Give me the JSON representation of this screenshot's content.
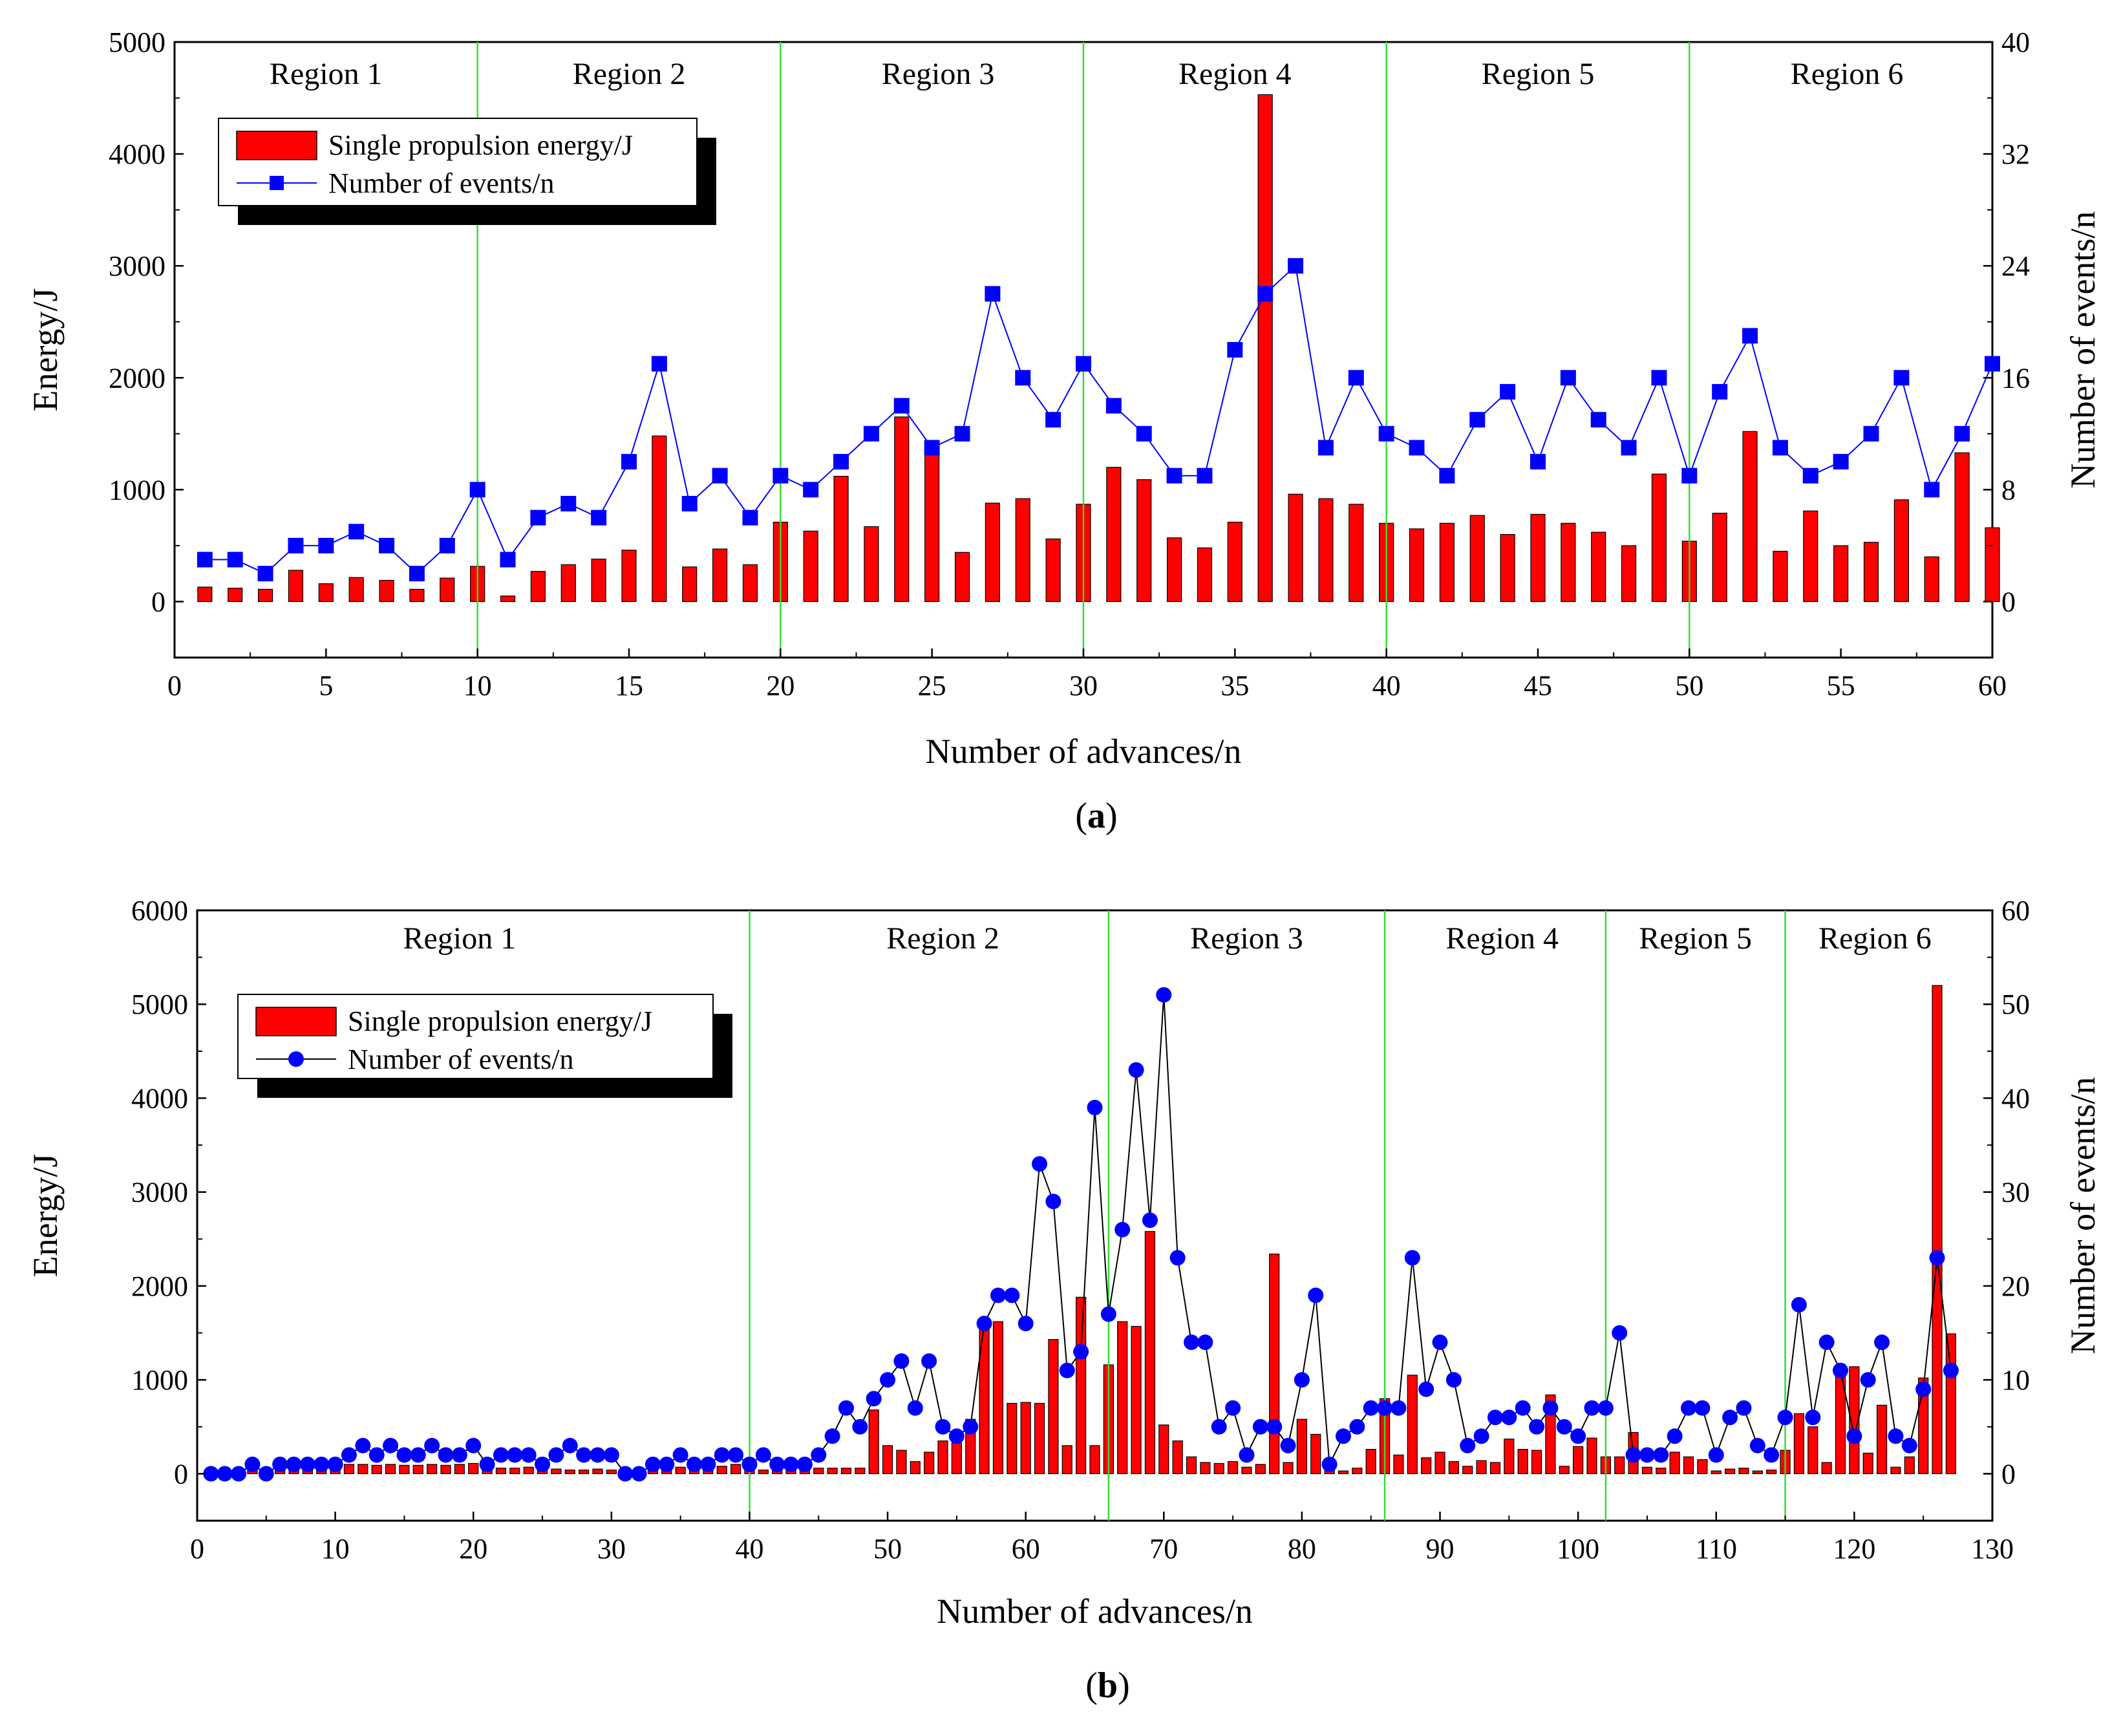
{
  "chart_data": [
    {
      "type": "bar+line",
      "panel_label": "a",
      "xlabel": "Number of advances/n",
      "ylabel_left": "Energy/J",
      "ylabel_right": "Number of events/n",
      "xlim": [
        0,
        60
      ],
      "ylim_left": [
        -500,
        5000
      ],
      "ylim_right": [
        -4,
        40
      ],
      "x_ticks": [
        0,
        5,
        10,
        15,
        20,
        25,
        30,
        35,
        40,
        45,
        50,
        55,
        60
      ],
      "y_left_ticks": [
        0,
        1000,
        2000,
        3000,
        4000,
        5000
      ],
      "y_right_ticks": [
        0,
        8,
        16,
        24,
        32,
        40
      ],
      "region_boundaries": [
        10,
        20,
        30,
        40,
        50
      ],
      "regions": [
        {
          "label": "Region 1",
          "x": 5
        },
        {
          "label": "Region 2",
          "x": 15
        },
        {
          "label": "Region 3",
          "x": 25.2
        },
        {
          "label": "Region 4",
          "x": 35
        },
        {
          "label": "Region 5",
          "x": 45
        },
        {
          "label": "Region 6",
          "x": 55.2
        }
      ],
      "legend": {
        "bar": "Single propulsion energy/J",
        "line": "Number of events/n",
        "placement": "top-left"
      },
      "line_marker": "square",
      "line_color": "#0000ff",
      "bar_color": "#ff0000",
      "x": [
        1,
        2,
        3,
        4,
        5,
        6,
        7,
        8,
        9,
        10,
        11,
        12,
        13,
        14,
        15,
        16,
        17,
        18,
        19,
        20,
        21,
        22,
        23,
        24,
        25,
        26,
        27,
        28,
        29,
        30,
        31,
        32,
        33,
        34,
        35,
        36,
        37,
        38,
        39,
        40,
        41,
        42,
        43,
        44,
        45,
        46,
        47,
        48,
        49,
        50,
        51,
        52,
        53,
        54,
        55,
        56,
        57,
        58,
        59,
        60
      ],
      "series": [
        {
          "name": "Single propulsion energy/J",
          "axis": "left",
          "values": [
            130,
            120,
            110,
            280,
            160,
            215,
            190,
            110,
            210,
            315,
            50,
            270,
            330,
            380,
            460,
            1480,
            310,
            470,
            330,
            710,
            630,
            1120,
            670,
            1650,
            1370,
            440,
            880,
            920,
            560,
            870,
            1200,
            1090,
            570,
            480,
            710,
            4530,
            960,
            920,
            870,
            700,
            650,
            700,
            770,
            600,
            780,
            700,
            620,
            500,
            1140,
            540,
            790,
            1520,
            450,
            810,
            500,
            530,
            910,
            400,
            1330,
            660
          ]
        },
        {
          "name": "Number of events/n",
          "axis": "right",
          "values": [
            3,
            3,
            2,
            4,
            4,
            5,
            4,
            2,
            4,
            8,
            3,
            6,
            7,
            6,
            10,
            17,
            7,
            9,
            6,
            9,
            8,
            10,
            12,
            14,
            11,
            12,
            22,
            16,
            13,
            17,
            14,
            12,
            9,
            9,
            18,
            22,
            24,
            11,
            16,
            12,
            11,
            9,
            13,
            15,
            10,
            16,
            13,
            11,
            16,
            9,
            15,
            19,
            11,
            9,
            10,
            12,
            16,
            8,
            12,
            17
          ]
        }
      ]
    },
    {
      "type": "bar+line",
      "panel_label": "b",
      "xlabel": "Number of advances/n",
      "ylabel_left": "Energy/J",
      "ylabel_right": "Number of events/n",
      "xlim": [
        0,
        130
      ],
      "ylim_left": [
        -500,
        6000
      ],
      "ylim_right": [
        -5,
        60
      ],
      "x_ticks": [
        0,
        10,
        20,
        30,
        40,
        50,
        60,
        70,
        80,
        90,
        100,
        110,
        120,
        130
      ],
      "y_left_ticks": [
        0,
        1000,
        2000,
        3000,
        4000,
        5000,
        6000
      ],
      "y_right_ticks": [
        0,
        10,
        20,
        30,
        40,
        50,
        60
      ],
      "region_boundaries": [
        40,
        66,
        86,
        102,
        115
      ],
      "regions": [
        {
          "label": "Region 1",
          "x": 19
        },
        {
          "label": "Region 2",
          "x": 54
        },
        {
          "label": "Region 3",
          "x": 76
        },
        {
          "label": "Region 4",
          "x": 94.5
        },
        {
          "label": "Region 5",
          "x": 108.5
        },
        {
          "label": "Region 6",
          "x": 121.5
        }
      ],
      "legend": {
        "bar": "Single propulsion energy/J",
        "line": "Number of events/n",
        "placement": "top-left"
      },
      "line_marker": "circle",
      "line_color": "#000000",
      "marker_color": "#0000ff",
      "bar_color": "#ff0000",
      "x": [
        1,
        2,
        3,
        4,
        5,
        6,
        7,
        8,
        9,
        10,
        11,
        12,
        13,
        14,
        15,
        16,
        17,
        18,
        19,
        20,
        21,
        22,
        23,
        24,
        25,
        26,
        27,
        28,
        29,
        30,
        31,
        32,
        33,
        34,
        35,
        36,
        37,
        38,
        39,
        40,
        41,
        42,
        43,
        44,
        45,
        46,
        47,
        48,
        49,
        50,
        51,
        52,
        53,
        54,
        55,
        56,
        57,
        58,
        59,
        60,
        61,
        62,
        63,
        64,
        65,
        66,
        67,
        68,
        69,
        70,
        71,
        72,
        73,
        74,
        75,
        76,
        77,
        78,
        79,
        80,
        81,
        82,
        83,
        84,
        85,
        86,
        87,
        88,
        89,
        90,
        91,
        92,
        93,
        94,
        95,
        96,
        97,
        98,
        99,
        100,
        101,
        102,
        103,
        104,
        105,
        106,
        107,
        108,
        109,
        110,
        111,
        112,
        113,
        114,
        115,
        116,
        117,
        118,
        119,
        120,
        121,
        122,
        123,
        124,
        125,
        126,
        127
      ],
      "series": [
        {
          "name": "Single propulsion energy/J",
          "axis": "left",
          "values": [
            30,
            40,
            50,
            60,
            50,
            60,
            70,
            80,
            80,
            90,
            100,
            100,
            90,
            100,
            90,
            90,
            100,
            90,
            100,
            110,
            60,
            60,
            60,
            70,
            70,
            50,
            40,
            40,
            50,
            40,
            50,
            60,
            70,
            60,
            70,
            80,
            70,
            80,
            100,
            120,
            40,
            40,
            50,
            60,
            60,
            60,
            60,
            60,
            680,
            300,
            250,
            130,
            230,
            350,
            330,
            580,
            1650,
            1620,
            750,
            760,
            750,
            1430,
            300,
            1880,
            300,
            1160,
            1620,
            1570,
            2580,
            520,
            350,
            180,
            120,
            110,
            130,
            70,
            100,
            2340,
            120,
            580,
            420,
            60,
            30,
            60,
            260,
            800,
            200,
            1050,
            170,
            230,
            130,
            80,
            140,
            120,
            370,
            260,
            250,
            840,
            80,
            290,
            380,
            180,
            180,
            440,
            70,
            60,
            230,
            180,
            150,
            30,
            50,
            60,
            30,
            40,
            250,
            640,
            500,
            120,
            1050,
            1140,
            220,
            730,
            70,
            180,
            1020,
            5200,
            1490
          ]
        },
        {
          "name": "Number of events/n",
          "axis": "right",
          "values": [
            0,
            0,
            0,
            1,
            0,
            1,
            1,
            1,
            1,
            1,
            2,
            3,
            2,
            3,
            2,
            2,
            3,
            2,
            2,
            3,
            1,
            2,
            2,
            2,
            1,
            2,
            3,
            2,
            2,
            2,
            0,
            0,
            1,
            1,
            2,
            1,
            1,
            2,
            2,
            1,
            2,
            1,
            1,
            1,
            2,
            4,
            7,
            5,
            8,
            10,
            12,
            7,
            12,
            5,
            4,
            5,
            16,
            19,
            19,
            16,
            33,
            29,
            11,
            13,
            39,
            17,
            26,
            43,
            27,
            51,
            23,
            14,
            14,
            5,
            7,
            2,
            5,
            5,
            3,
            10,
            19,
            1,
            4,
            5,
            7,
            7,
            7,
            23,
            9,
            14,
            10,
            3,
            4,
            6,
            6,
            7,
            5,
            7,
            5,
            4,
            7,
            7,
            15,
            2,
            2,
            2,
            4,
            7,
            7,
            2,
            6,
            7,
            3,
            2,
            6,
            18,
            6,
            14,
            11,
            4,
            10,
            14,
            4,
            3,
            9,
            23,
            11
          ]
        }
      ]
    }
  ]
}
